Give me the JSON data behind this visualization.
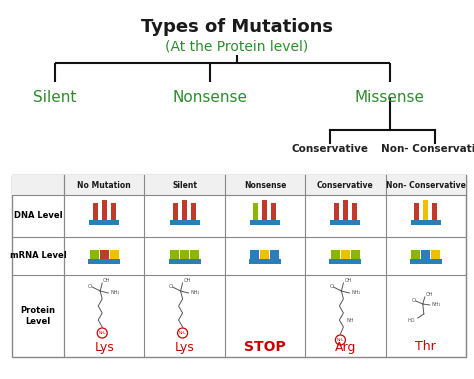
{
  "title": "Types of Mutations",
  "subtitle": "(At the Protein level)",
  "title_color": "#1a1a1a",
  "subtitle_color": "#2e8b2e",
  "branch_labels": [
    "Silent",
    "Nonsense",
    "Missense"
  ],
  "branch_color": "#2e8b2e",
  "sub_branch_labels": [
    "Conservative",
    "Non- Conservative"
  ],
  "sub_branch_color": "#222222",
  "table_headers": [
    "No Mutation",
    "Silent",
    "Nonsense",
    "Conservative",
    "Non- Conservative"
  ],
  "row_labels": [
    "DNA Level",
    "mRNA Level",
    "Protein\nLevel"
  ],
  "protein_labels": [
    "Lys",
    "Lys",
    "STOP",
    "Arg",
    "Thr"
  ],
  "protein_label_color": "#cc0000",
  "bg_color": "#ffffff",
  "line_color": "#111111",
  "green_color": "#2e8b2e",
  "platform_color": "#2980b9",
  "table_line_color": "#888888",
  "dna_bar_colors": [
    [
      "#c0392b",
      "#c0392b",
      "#c0392b"
    ],
    [
      "#c0392b",
      "#c0392b",
      "#c0392b"
    ],
    [
      "#8db600",
      "#c0392b",
      "#c0392b"
    ],
    [
      "#c0392b",
      "#c0392b",
      "#c0392b"
    ],
    [
      "#c0392b",
      "#f0c000",
      "#c0392b"
    ]
  ],
  "mrna_sq_colors": [
    [
      "#8db600",
      "#c0392b",
      "#f0c000"
    ],
    [
      "#8db600",
      "#8db600",
      "#8db600"
    ],
    [
      "#2980b9",
      "#f0c000",
      "#2980b9"
    ],
    [
      "#8db600",
      "#f0c000",
      "#8db600"
    ],
    [
      "#8db600",
      "#2980b9",
      "#f0c000"
    ]
  ]
}
